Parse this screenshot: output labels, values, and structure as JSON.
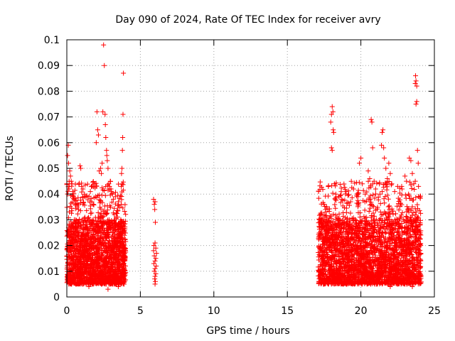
{
  "chart_data": {
    "type": "scatter",
    "title": "Day 090 of 2024, Rate Of TEC Index for receiver avry",
    "xlabel": "GPS time / hours",
    "ylabel": "ROTI / TECUs",
    "xlim": [
      0,
      25
    ],
    "ylim": [
      0,
      0.1
    ],
    "grid": true,
    "marker": "plus",
    "color": "#ff0000",
    "x_tick_labels": [
      "0",
      "5",
      "10",
      "15",
      "20",
      "25"
    ],
    "y_tick_labels": [
      "0",
      "0.01",
      "0.02",
      "0.03",
      "0.04",
      "0.05",
      "0.06",
      "0.07",
      "0.08",
      "0.09",
      "0.1"
    ],
    "x_ticks": [
      0,
      5,
      10,
      15,
      20,
      25
    ],
    "y_ticks": [
      0,
      0.01,
      0.02,
      0.03,
      0.04,
      0.05,
      0.06,
      0.07,
      0.08,
      0.09,
      0.1
    ],
    "series": [
      {
        "name": "ROTI",
        "points": [
          [
            0.05,
            0.055
          ],
          [
            0.1,
            0.059
          ],
          [
            0.12,
            0.052
          ],
          [
            0.2,
            0.049
          ],
          [
            0.25,
            0.047
          ],
          [
            0.3,
            0.045
          ],
          [
            0.35,
            0.044
          ],
          [
            0.15,
            0.042
          ],
          [
            0.4,
            0.041
          ],
          [
            0.5,
            0.038
          ],
          [
            0.6,
            0.036
          ],
          [
            0.7,
            0.035
          ],
          [
            0.8,
            0.034
          ],
          [
            0.9,
            0.051
          ],
          [
            0.95,
            0.05
          ],
          [
            1.0,
            0.043
          ],
          [
            1.1,
            0.042
          ],
          [
            1.2,
            0.04
          ],
          [
            1.3,
            0.039
          ],
          [
            1.6,
            0.041
          ],
          [
            1.7,
            0.037
          ],
          [
            1.8,
            0.036
          ],
          [
            2.0,
            0.06
          ],
          [
            2.05,
            0.072
          ],
          [
            2.1,
            0.065
          ],
          [
            2.15,
            0.063
          ],
          [
            2.2,
            0.049
          ],
          [
            2.3,
            0.05
          ],
          [
            2.35,
            0.048
          ],
          [
            2.4,
            0.052
          ],
          [
            2.45,
            0.072
          ],
          [
            2.5,
            0.098
          ],
          [
            2.55,
            0.09
          ],
          [
            2.6,
            0.071
          ],
          [
            2.62,
            0.067
          ],
          [
            2.65,
            0.062
          ],
          [
            2.7,
            0.057
          ],
          [
            2.72,
            0.055
          ],
          [
            2.75,
            0.053
          ],
          [
            2.8,
            0.05
          ],
          [
            2.85,
            0.044
          ],
          [
            2.9,
            0.043
          ],
          [
            3.0,
            0.042
          ],
          [
            3.1,
            0.04
          ],
          [
            3.3,
            0.039
          ],
          [
            3.5,
            0.037
          ],
          [
            3.7,
            0.036
          ],
          [
            3.75,
            0.05
          ],
          [
            3.8,
            0.062
          ],
          [
            3.82,
            0.071
          ],
          [
            3.85,
            0.087
          ],
          [
            3.78,
            0.057
          ],
          [
            3.72,
            0.048
          ],
          [
            3.76,
            0.044
          ],
          [
            3.7,
            0.043
          ],
          [
            5.9,
            0.038
          ],
          [
            6.0,
            0.037
          ],
          [
            5.95,
            0.036
          ],
          [
            5.98,
            0.034
          ],
          [
            6.02,
            0.029
          ],
          [
            6.0,
            0.021
          ],
          [
            5.92,
            0.02
          ],
          [
            6.05,
            0.019
          ],
          [
            5.9,
            0.018
          ],
          [
            6.1,
            0.017
          ],
          [
            5.95,
            0.016
          ],
          [
            6.05,
            0.015
          ],
          [
            6.0,
            0.014
          ],
          [
            5.92,
            0.013
          ],
          [
            6.08,
            0.012
          ],
          [
            6.0,
            0.011
          ],
          [
            5.95,
            0.01
          ],
          [
            6.05,
            0.009
          ],
          [
            6.0,
            0.008
          ],
          [
            5.98,
            0.007
          ],
          [
            6.02,
            0.006
          ],
          [
            6.0,
            0.005
          ],
          [
            17.5,
            0.036
          ],
          [
            17.6,
            0.034
          ],
          [
            17.3,
            0.032
          ],
          [
            17.2,
            0.03
          ],
          [
            18.0,
            0.071
          ],
          [
            18.05,
            0.074
          ],
          [
            18.1,
            0.072
          ],
          [
            18.12,
            0.065
          ],
          [
            18.15,
            0.064
          ],
          [
            17.95,
            0.068
          ],
          [
            18.0,
            0.058
          ],
          [
            18.05,
            0.057
          ],
          [
            18.2,
            0.044
          ],
          [
            18.3,
            0.04
          ],
          [
            18.5,
            0.039
          ],
          [
            18.7,
            0.038
          ],
          [
            19.0,
            0.041
          ],
          [
            19.3,
            0.037
          ],
          [
            19.5,
            0.042
          ],
          [
            19.8,
            0.039
          ],
          [
            19.9,
            0.052
          ],
          [
            20.0,
            0.054
          ],
          [
            20.1,
            0.044
          ],
          [
            20.3,
            0.04
          ],
          [
            20.5,
            0.049
          ],
          [
            20.6,
            0.046
          ],
          [
            20.7,
            0.069
          ],
          [
            20.75,
            0.068
          ],
          [
            20.8,
            0.058
          ],
          [
            20.9,
            0.045
          ],
          [
            21.0,
            0.042
          ],
          [
            21.3,
            0.04
          ],
          [
            21.4,
            0.059
          ],
          [
            21.45,
            0.064
          ],
          [
            21.5,
            0.065
          ],
          [
            21.55,
            0.058
          ],
          [
            21.6,
            0.054
          ],
          [
            21.7,
            0.05
          ],
          [
            21.8,
            0.046
          ],
          [
            21.9,
            0.052
          ],
          [
            22.0,
            0.048
          ],
          [
            22.1,
            0.044
          ],
          [
            22.3,
            0.041
          ],
          [
            22.5,
            0.043
          ],
          [
            22.8,
            0.042
          ],
          [
            23.0,
            0.047
          ],
          [
            23.1,
            0.045
          ],
          [
            23.3,
            0.054
          ],
          [
            23.4,
            0.053
          ],
          [
            23.5,
            0.048
          ],
          [
            23.6,
            0.044
          ],
          [
            23.7,
            0.045
          ],
          [
            23.75,
            0.075
          ],
          [
            23.8,
            0.076
          ],
          [
            23.7,
            0.083
          ],
          [
            23.75,
            0.084
          ],
          [
            23.8,
            0.082
          ],
          [
            23.72,
            0.086
          ],
          [
            23.85,
            0.057
          ],
          [
            23.9,
            0.052
          ],
          [
            23.92,
            0.043
          ],
          [
            23.5,
            0.004
          ],
          [
            23.0,
            0.005
          ],
          [
            22.0,
            0.004
          ],
          [
            19.0,
            0.005
          ],
          [
            18.0,
            0.005
          ],
          [
            17.5,
            0.005
          ],
          [
            2.8,
            0.003
          ],
          [
            1.5,
            0.004
          ],
          [
            0.3,
            0.005
          ],
          [
            3.5,
            0.004
          ]
        ],
        "bands": [
          {
            "x": [
              0.0,
              4.0
            ],
            "y": [
              0.005,
              0.03
            ],
            "count": 1800
          },
          {
            "x": [
              0.0,
              4.0
            ],
            "y": [
              0.03,
              0.045
            ],
            "count": 160
          },
          {
            "x": [
              17.1,
              24.1
            ],
            "y": [
              0.005,
              0.03
            ],
            "count": 2600
          },
          {
            "x": [
              17.1,
              24.1
            ],
            "y": [
              0.03,
              0.045
            ],
            "count": 260
          }
        ]
      }
    ]
  }
}
